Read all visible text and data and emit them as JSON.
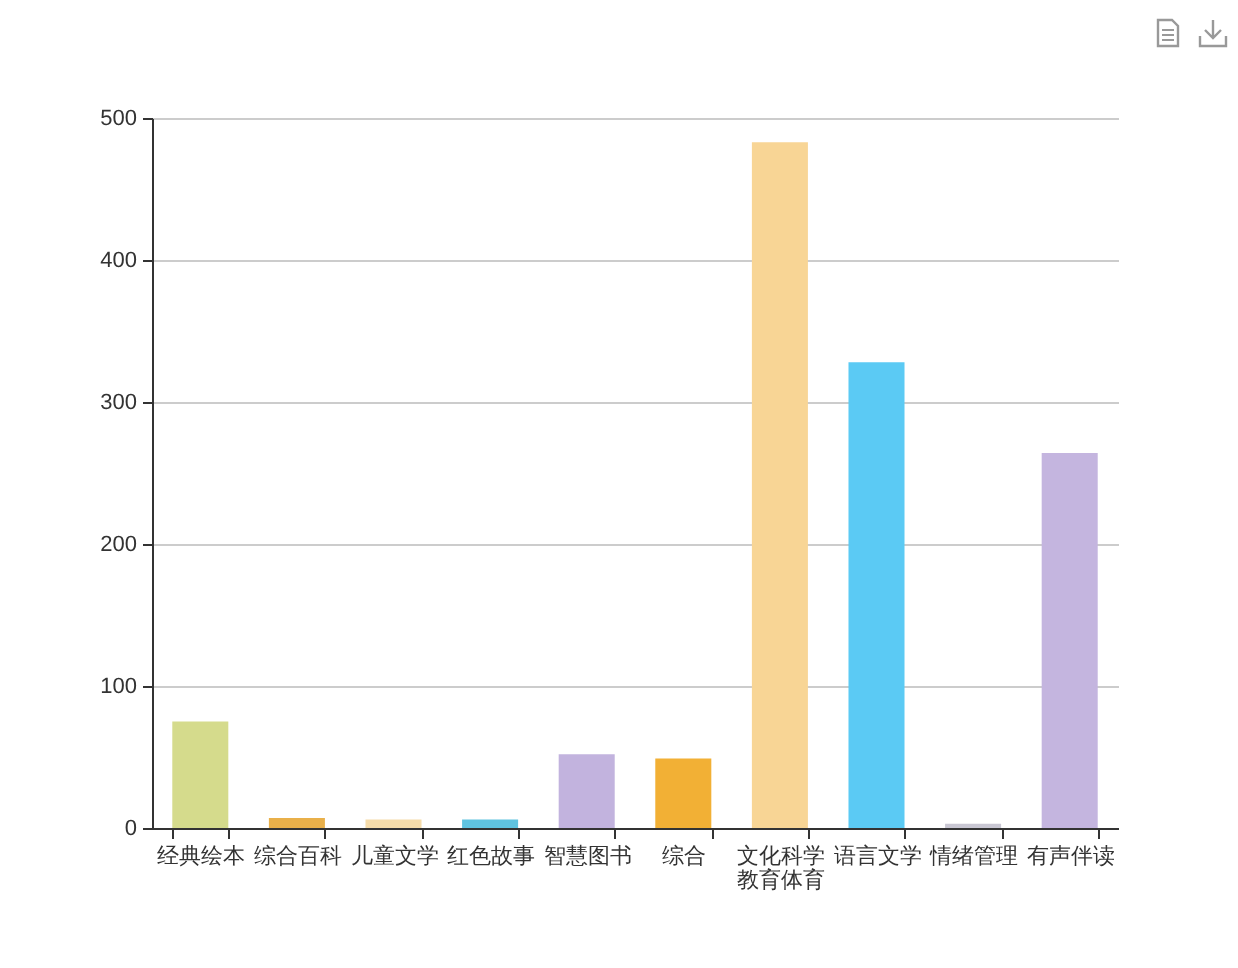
{
  "chart_data": {
    "type": "bar",
    "categories": [
      "经典绘本",
      "综合百科",
      "儿童文学",
      "红色故事",
      "智慧图书",
      "综合",
      "文化科学教育体育",
      "语言文学",
      "情绪管理",
      "有声伴读"
    ],
    "values": [
      75,
      7,
      6,
      6,
      52,
      49,
      483,
      328,
      3,
      264
    ],
    "colors": [
      "#d5db8c",
      "#e9b04a",
      "#f6dcaa",
      "#5fc3e0",
      "#c2b3de",
      "#f2b035",
      "#f8d595",
      "#5bcaf4",
      "#c9c7d3",
      "#c4b5df"
    ],
    "ylim": [
      0,
      500
    ],
    "yticks": [
      0,
      100,
      200,
      300,
      400,
      500
    ],
    "grid": "y"
  }
}
